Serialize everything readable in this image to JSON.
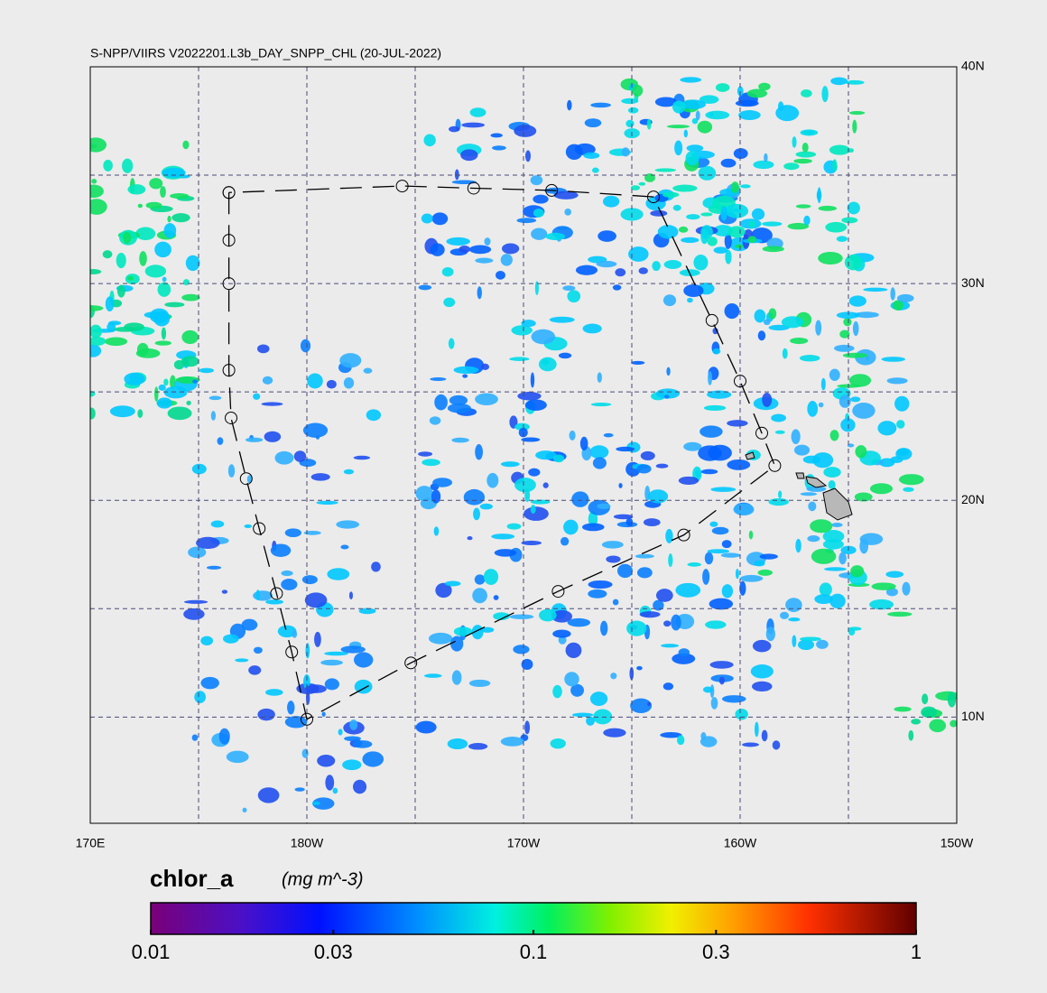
{
  "header": {
    "title": "S-NPP/VIIRS V2022201.L3b_DAY_SNPP_CHL (20-JUL-2022)"
  },
  "map": {
    "lonlim": [
      170,
      210
    ],
    "latlim": [
      5.1,
      40
    ],
    "lon_ticks": [
      {
        "value": 170,
        "label": "170E"
      },
      {
        "value": 180,
        "label": "180W"
      },
      {
        "value": 190,
        "label": "170W"
      },
      {
        "value": 200,
        "label": "160W"
      },
      {
        "value": 210,
        "label": "150W"
      }
    ],
    "lat_ticks": [
      {
        "value": 40,
        "label": "40N"
      },
      {
        "value": 30,
        "label": "30N"
      },
      {
        "value": 20,
        "label": "20N"
      },
      {
        "value": 10,
        "label": "10N"
      }
    ],
    "grid_lon": [
      175,
      180,
      185,
      190,
      195,
      200,
      205
    ],
    "grid_lat": [
      10,
      15,
      20,
      25,
      30,
      35
    ],
    "track": {
      "lon": [
        176.4,
        176.4,
        176.4,
        176.4,
        176.5,
        177.2,
        177.8,
        178.6,
        179.3,
        180.0,
        184.8,
        191.6,
        197.4,
        201.6,
        201.0,
        200.0,
        198.7,
        196.0,
        191.3,
        187.7,
        184.4,
        176.4
      ],
      "lat": [
        34.2,
        32.0,
        30.0,
        26.0,
        23.8,
        21.0,
        18.7,
        15.7,
        13.0,
        9.9,
        12.5,
        15.8,
        18.4,
        21.6,
        23.1,
        25.5,
        28.3,
        34.0,
        34.3,
        34.4,
        34.5,
        34.2
      ]
    }
  },
  "colorbar": {
    "label": "chlor_a",
    "units": "(mg m^-3)",
    "scale": "log",
    "lim": [
      0.01,
      1
    ],
    "ticks": [
      0.01,
      0.03,
      0.1,
      0.3,
      1
    ]
  }
}
